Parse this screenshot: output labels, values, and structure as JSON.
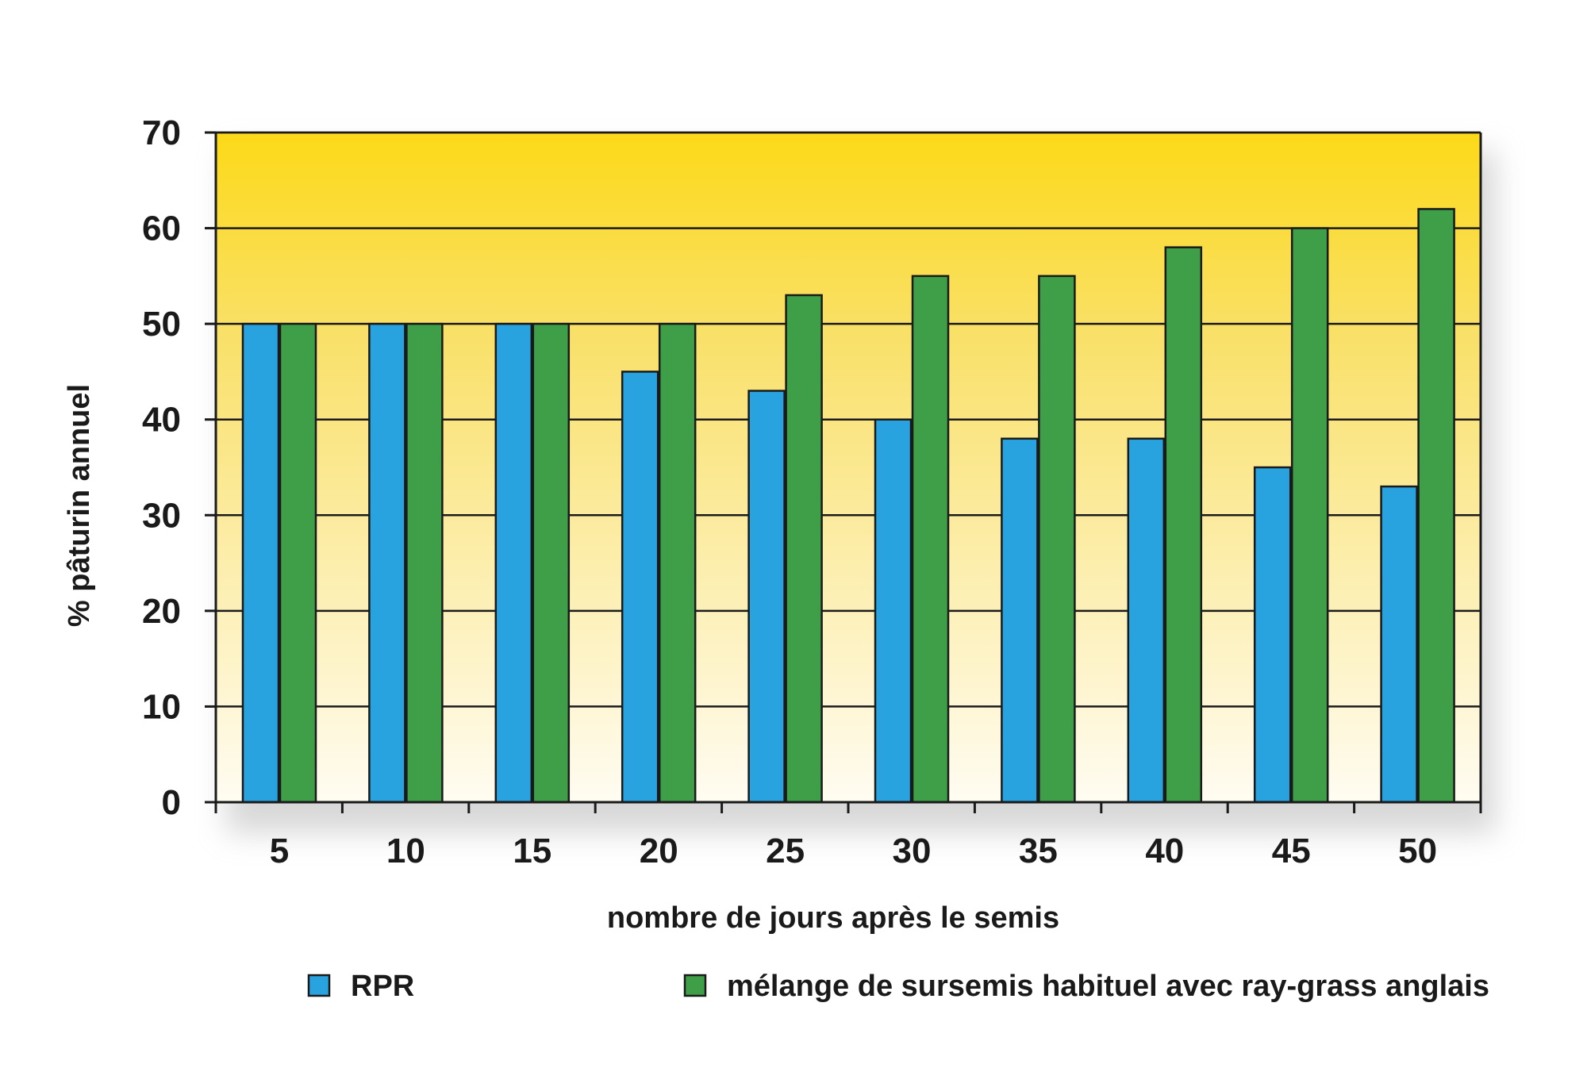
{
  "chart_data": {
    "type": "bar",
    "xlabel": "nombre de jours après le semis",
    "ylabel": "% pâturin annuel",
    "ylim": [
      0,
      70
    ],
    "yticks": [
      0,
      10,
      20,
      30,
      40,
      50,
      60,
      70
    ],
    "categories": [
      "5",
      "10",
      "15",
      "20",
      "25",
      "30",
      "35",
      "40",
      "45",
      "50"
    ],
    "grid": true,
    "legend_position": "bottom",
    "series": [
      {
        "name": "RPR",
        "color": "#29a3df",
        "values": [
          50,
          50,
          50,
          45,
          43,
          40,
          38,
          38,
          35,
          33
        ]
      },
      {
        "name": "mélange de sursemis habituel avec ray-grass anglais",
        "color": "#3f9e48",
        "values": [
          50,
          50,
          50,
          50,
          53,
          55,
          55,
          58,
          60,
          62
        ]
      }
    ],
    "background_gradient": [
      "#fcd918",
      "#fffcf2"
    ]
  }
}
